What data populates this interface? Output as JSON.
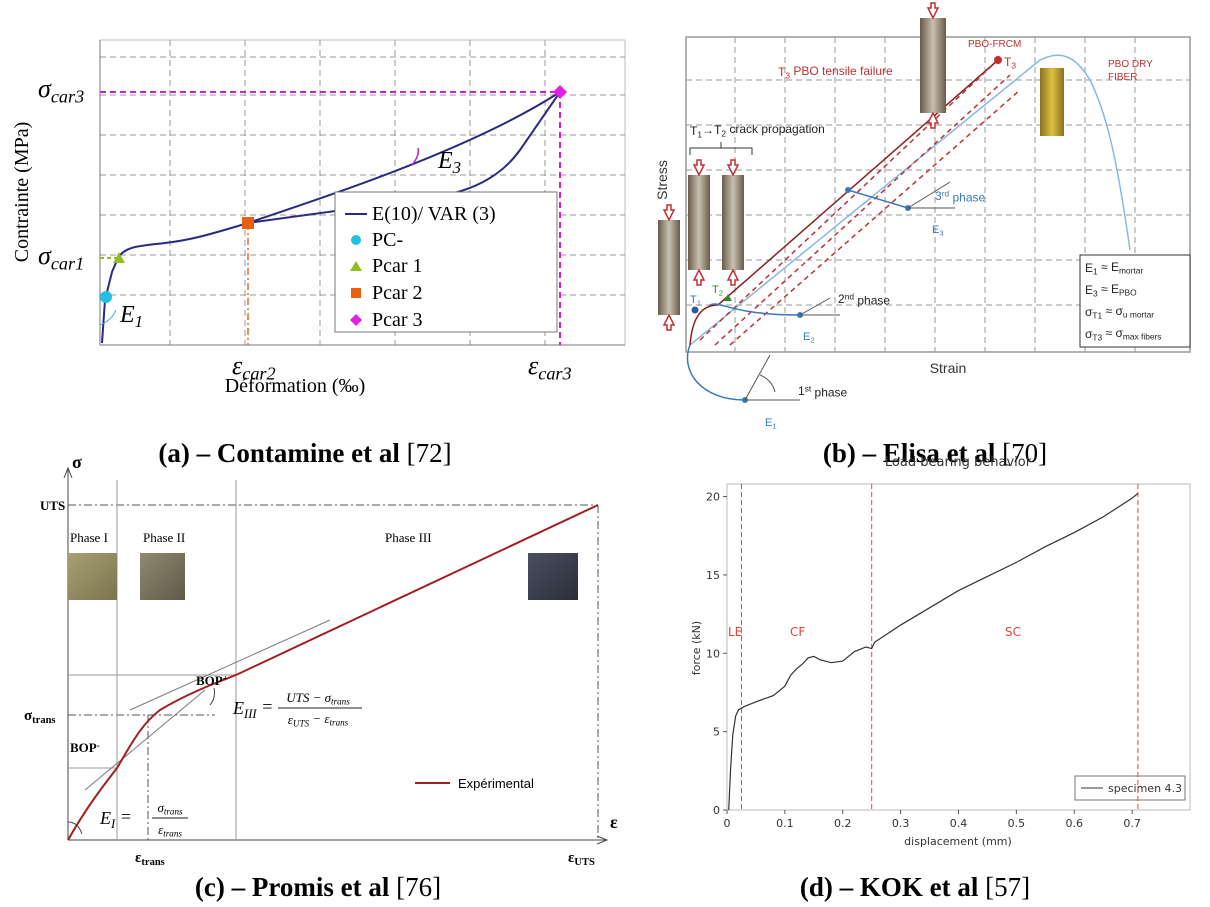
{
  "panel_a": {
    "y_label": "Contrainte (MPa)",
    "x_label": "Déformation (‰)",
    "sigma_car3": [
      [
        "σ"
      ],
      [
        "car3",
        "sub"
      ]
    ],
    "sigma_car1": [
      [
        "σ"
      ],
      [
        "car1",
        "sub"
      ]
    ],
    "eps_car2": [
      [
        "ε"
      ],
      [
        "car2",
        "sub"
      ]
    ],
    "eps_car3": [
      [
        "ε"
      ],
      [
        "car3",
        "sub"
      ]
    ],
    "e1": [
      [
        "E"
      ],
      [
        "1",
        "sub"
      ]
    ],
    "e3": [
      [
        "E"
      ],
      [
        "3",
        "sub"
      ]
    ],
    "legend": [
      "E(10)/ VAR (3)",
      "PC-",
      "Pcar 1",
      "Pcar 2",
      "Pcar 3"
    ]
  },
  "caption_a": {
    "label": "(a) – Contamine et al",
    "ref": "[72]"
  },
  "panel_b": {
    "y_label": "Stress",
    "x_label": "Strain",
    "t3_failure": [
      [
        "T"
      ],
      [
        "3",
        "sub"
      ],
      [
        " PBO tensile failure"
      ]
    ],
    "pbo_frcm": "PBO-FRCM",
    "t3": [
      [
        "T"
      ],
      [
        "3",
        "sub"
      ]
    ],
    "dry_fiber": [
      "PBO DRY",
      "FIBER"
    ],
    "crack": [
      [
        "T"
      ],
      [
        "1",
        "sub"
      ],
      [
        "→T"
      ],
      [
        "2",
        "sub"
      ],
      [
        " crack propagation"
      ]
    ],
    "phase3": [
      [
        "3"
      ],
      [
        "rd",
        "sup"
      ],
      [
        " phase"
      ]
    ],
    "phase2": [
      [
        "2"
      ],
      [
        "nd",
        "sup"
      ],
      [
        " phase"
      ]
    ],
    "phase1": [
      [
        "1"
      ],
      [
        "st",
        "sup"
      ],
      [
        " phase"
      ]
    ],
    "e1": [
      [
        "E"
      ],
      [
        "1",
        "sub"
      ]
    ],
    "e2": [
      [
        "E"
      ],
      [
        "2",
        "sub"
      ]
    ],
    "e3": [
      [
        "E"
      ],
      [
        "3",
        "sub"
      ]
    ],
    "t1": [
      [
        "T"
      ],
      [
        "1",
        "sub"
      ]
    ],
    "t2": [
      [
        "T"
      ],
      [
        "2",
        "sub"
      ]
    ],
    "box": [
      [
        [
          "E"
        ],
        [
          "1",
          "sub"
        ],
        [
          " ≈ E"
        ],
        [
          "mortar",
          "sub"
        ]
      ],
      [
        [
          "E"
        ],
        [
          "3",
          "sub"
        ],
        [
          " ≈ E"
        ],
        [
          "PBO",
          "sub"
        ]
      ],
      [
        [
          "σ"
        ],
        [
          "T1",
          "sub"
        ],
        [
          " ≈ σ"
        ],
        [
          "u mortar",
          "sub"
        ]
      ],
      [
        [
          "σ"
        ],
        [
          "T3",
          "sub"
        ],
        [
          " ≈ σ"
        ],
        [
          "max fibers",
          "sub"
        ]
      ]
    ]
  },
  "caption_b": {
    "label": "(b) – Elisa et al",
    "ref": "[70]"
  },
  "panel_c": {
    "y_axis": "σ",
    "x_axis": "ε",
    "uts": "UTS",
    "phases": [
      "Phase I",
      "Phase II",
      "Phase III"
    ],
    "bop_plus": [
      [
        "BOP"
      ],
      [
        "+",
        "sup"
      ]
    ],
    "bop_minus": [
      [
        "BOP"
      ],
      [
        "-",
        "sup"
      ]
    ],
    "sigma_trans": [
      [
        "σ"
      ],
      [
        "trans",
        "sub"
      ]
    ],
    "eps_trans": [
      [
        "ε"
      ],
      [
        "trans",
        "sub"
      ]
    ],
    "eps_uts": [
      [
        "ε"
      ],
      [
        "UTS",
        "sub"
      ]
    ],
    "e3_lhs": [
      [
        "E"
      ],
      [
        "III",
        "sub"
      ],
      [
        "  ="
      ]
    ],
    "e3_num": [
      [
        "UTS − σ"
      ],
      [
        "trans",
        "sub"
      ]
    ],
    "e3_den": [
      [
        "ε"
      ],
      [
        "UTS",
        "sub"
      ],
      [
        " − ε"
      ],
      [
        "trans",
        "sub"
      ]
    ],
    "e1_lhs": [
      [
        "E"
      ],
      [
        "I",
        "sub"
      ],
      [
        " ="
      ]
    ],
    "e1_num": [
      [
        "σ"
      ],
      [
        "trans",
        "sub"
      ]
    ],
    "e1_den": [
      [
        "ε"
      ],
      [
        "trans",
        "sub"
      ]
    ],
    "legend": "Expérimental"
  },
  "caption_c": {
    "label": "(c) – Promis et al",
    "ref": "[76]"
  },
  "panel_d": {
    "type": "line",
    "title": "Load bearing behavior",
    "x_label": "displacement (mm)",
    "y_label": "force (kN)",
    "xlim": [
      0,
      0.8
    ],
    "ylim": [
      0,
      20.8
    ],
    "xticks": [
      0,
      0.1,
      0.2,
      0.3,
      0.4,
      0.5,
      0.6,
      0.7
    ],
    "yticks": [
      0,
      5,
      10,
      15,
      20
    ],
    "series": [
      {
        "name": "specimen 4.3",
        "color": "#333333",
        "x": [
          0.003,
          0.006,
          0.01,
          0.015,
          0.02,
          0.03,
          0.05,
          0.08,
          0.1,
          0.11,
          0.12,
          0.13,
          0.14,
          0.15,
          0.16,
          0.18,
          0.2,
          0.22,
          0.24,
          0.25,
          0.255,
          0.3,
          0.35,
          0.4,
          0.45,
          0.5,
          0.55,
          0.6,
          0.65,
          0.7,
          0.71
        ],
        "values": [
          0,
          2.5,
          4.8,
          6.0,
          6.4,
          6.6,
          6.9,
          7.3,
          7.9,
          8.6,
          9.0,
          9.3,
          9.7,
          9.8,
          9.6,
          9.4,
          9.5,
          10.1,
          10.4,
          10.3,
          10.7,
          11.8,
          12.9,
          14.0,
          14.9,
          15.8,
          16.8,
          17.7,
          18.7,
          19.9,
          20.2
        ]
      }
    ],
    "markers": [
      0.025,
      0.25,
      0.71
    ],
    "marker_color": "#e8423a",
    "regions": [
      "LE",
      "CF",
      "SC"
    ]
  },
  "caption_d": {
    "label": "(d) – KOK et al",
    "ref": "[57]"
  }
}
